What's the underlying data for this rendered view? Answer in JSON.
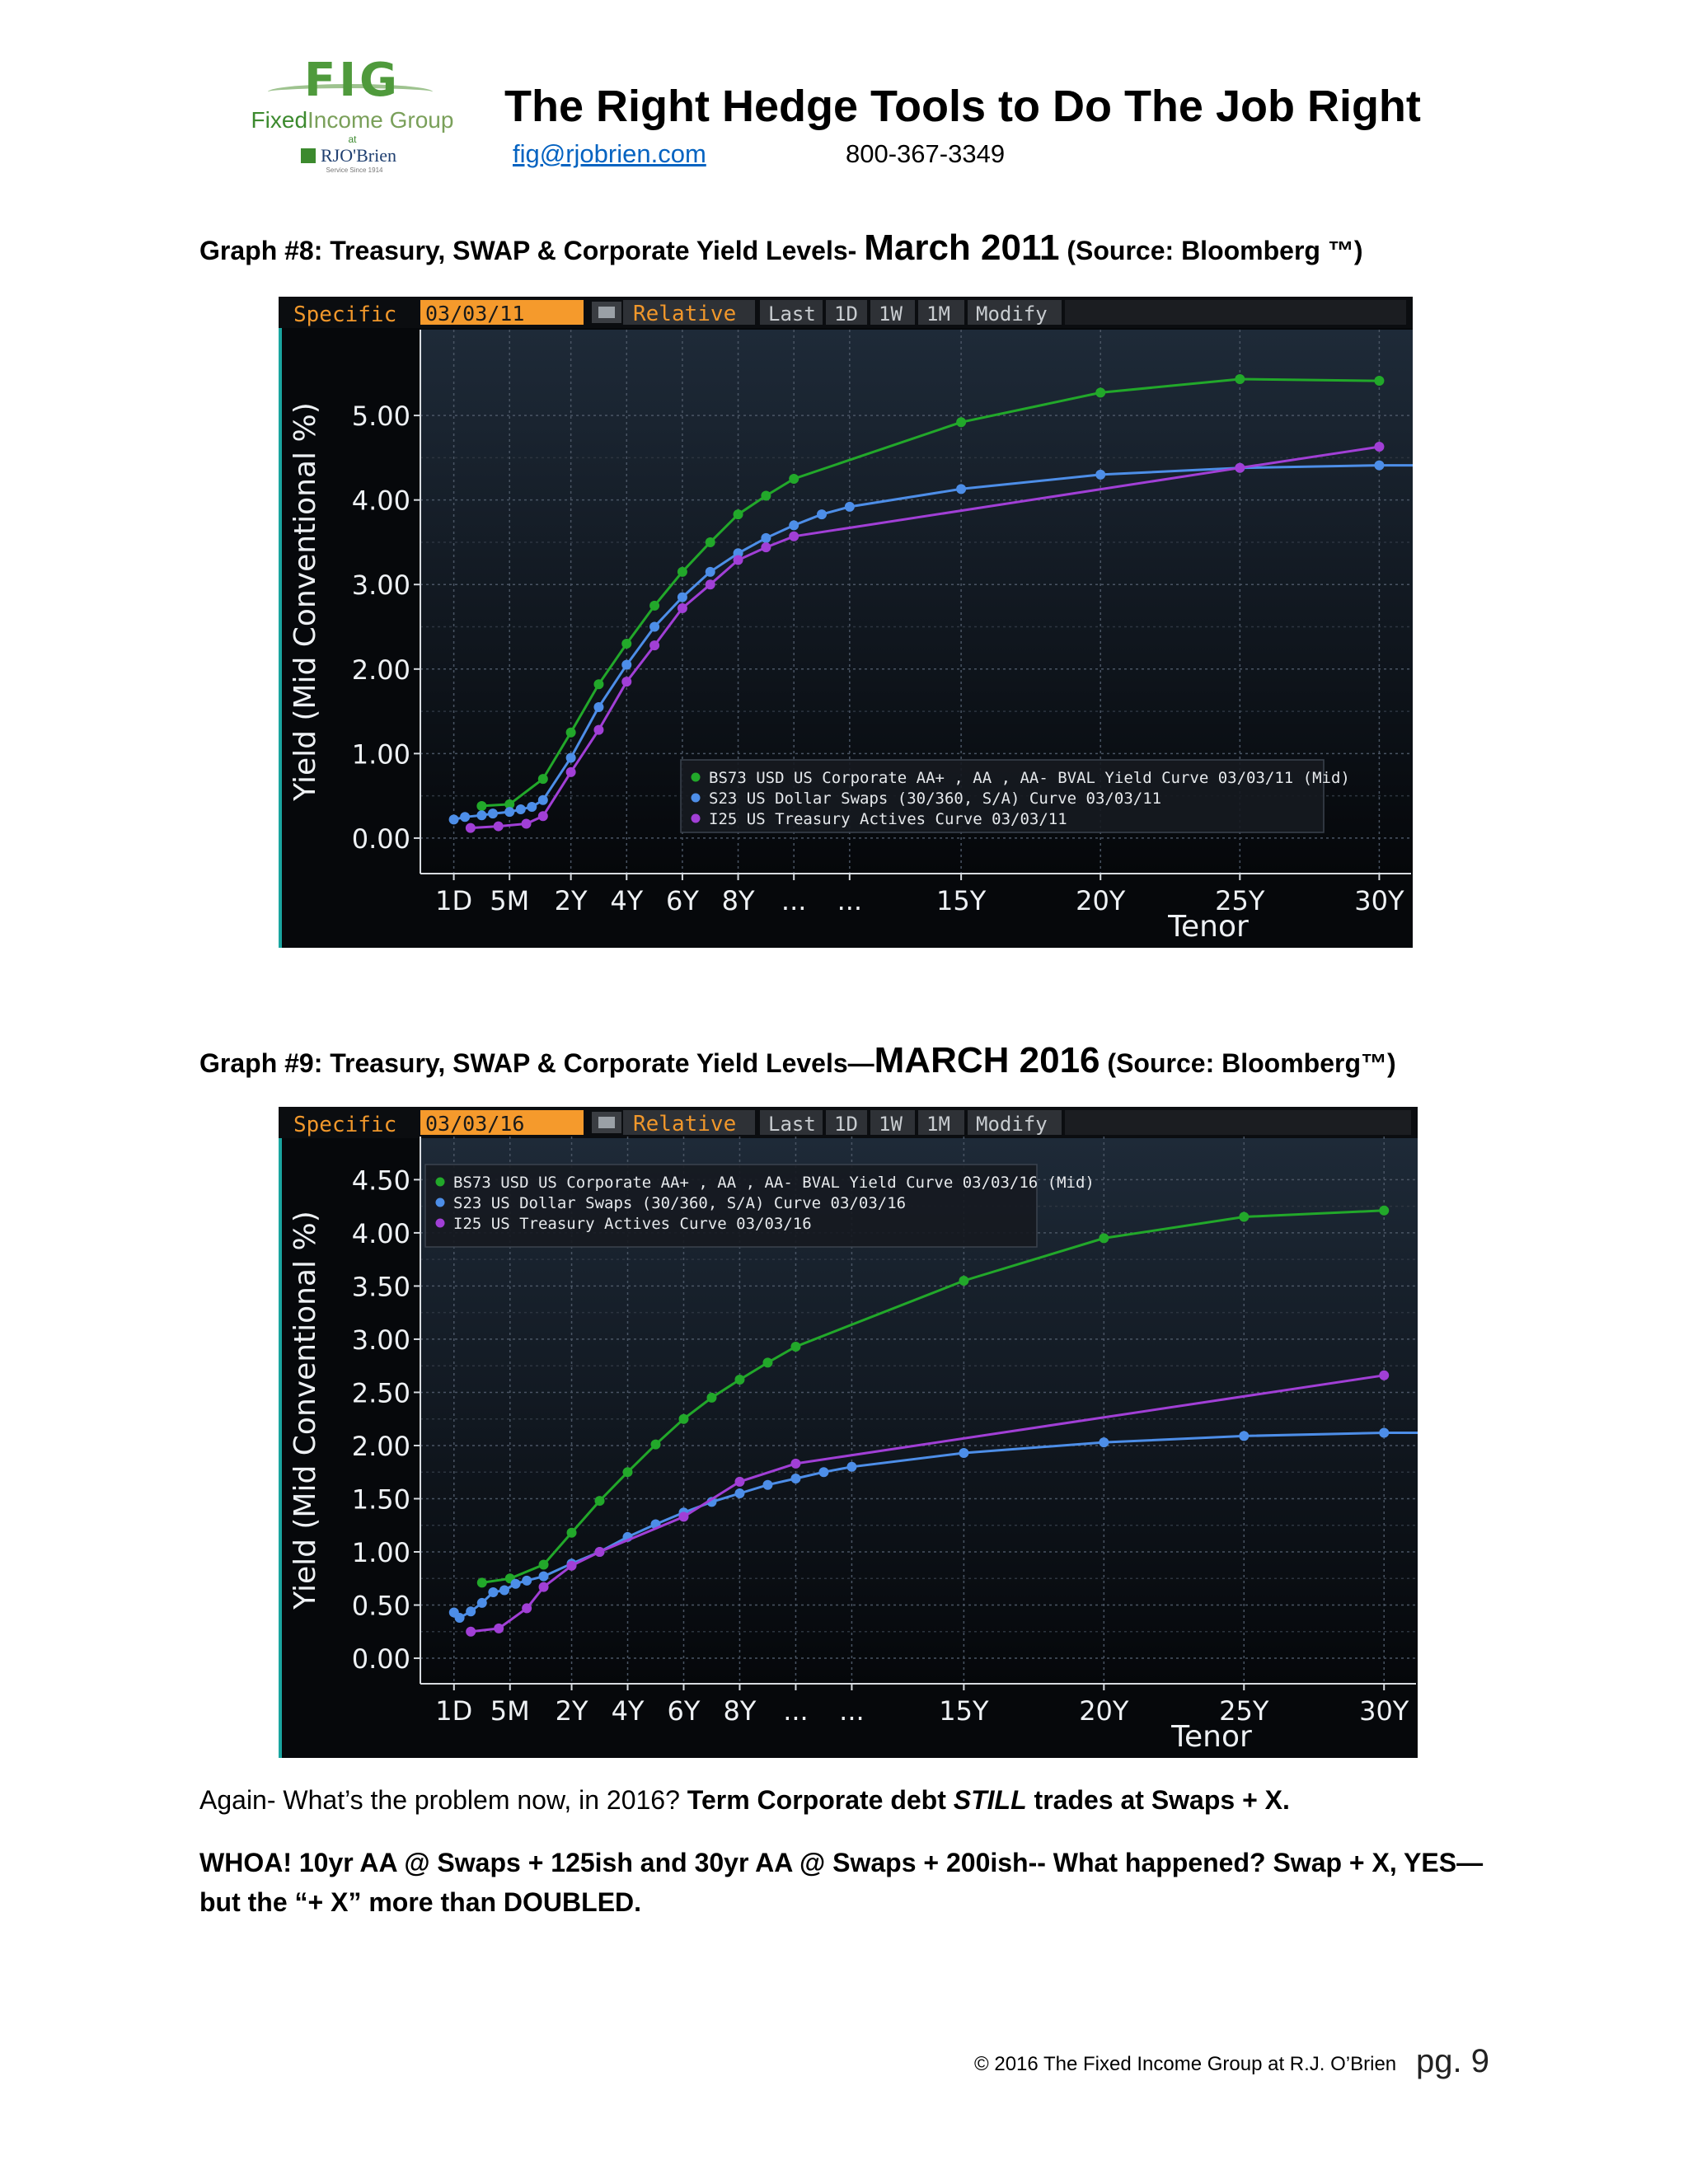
{
  "header": {
    "logo": {
      "abbr": "FIG",
      "name_part1": "Fixed",
      "name_part2": "Income Group",
      "at": "at",
      "rj": "RJO'Brien",
      "tag": "Service Since 1914"
    },
    "title": "The Right Hedge Tools to Do The Job Right",
    "email": "fig@rjobrien.com",
    "phone": "800-367-3349"
  },
  "graph8": {
    "caption_prefix": "Graph #8: Treasury, SWAP & Corporate Yield Levels- ",
    "caption_big": "March 2011",
    "caption_suffix": " (Source: Bloomberg ™)"
  },
  "graph9": {
    "caption_prefix": "Graph #9: Treasury, SWAP & Corporate Yield Levels—",
    "caption_big": "MARCH 2016",
    "caption_suffix": " (Source: Bloomberg™)"
  },
  "chart_data": [
    {
      "type": "line",
      "toolbar": {
        "specific": "Specific",
        "date": "03/03/11",
        "relative": "Relative",
        "buttons": [
          "Last",
          "1D",
          "1W",
          "1M",
          "Modify"
        ]
      },
      "ylabel": "Yield (Mid Conventional %)",
      "xlabel": "Tenor",
      "ylim": [
        -0.42,
        5.82
      ],
      "yticks": [
        0,
        1,
        2,
        3,
        4,
        5
      ],
      "ytick_labels": [
        "0.00",
        "1.00",
        "2.00",
        "3.00",
        "4.00",
        "5.00"
      ],
      "xticks": [
        0.6,
        1.6,
        2.7,
        3.7,
        4.7,
        5.7,
        6.7,
        7.7,
        9.7,
        12.2,
        14.7,
        17.2
      ],
      "xtick_labels": [
        "1D",
        "5M",
        "2Y",
        "4Y",
        "6Y",
        "8Y",
        "...",
        "...",
        "15Y",
        "20Y",
        "25Y",
        "30Y"
      ],
      "xlim": [
        0,
        17.8
      ],
      "legend_position": "inside-bottom-right",
      "grid": true,
      "series": [
        {
          "name": "BS73 USD US Corporate AA+ , AA , AA- BVAL Yield Curve 03/03/11 (Mid)",
          "color": "#22a82a",
          "x": [
            1.1,
            1.6,
            2.2,
            2.7,
            3.2,
            3.7,
            4.2,
            4.7,
            5.2,
            5.7,
            6.2,
            6.7,
            9.7,
            12.2,
            14.7,
            17.2
          ],
          "y": [
            0.38,
            0.4,
            0.7,
            1.25,
            1.82,
            2.3,
            2.75,
            3.15,
            3.5,
            3.83,
            4.05,
            4.25,
            4.92,
            5.27,
            5.43,
            5.41
          ]
        },
        {
          "name": "S23 US Dollar Swaps (30/360, S/A) Curve 03/03/11",
          "color": "#4d8ee8",
          "x": [
            0.6,
            0.8,
            1.1,
            1.3,
            1.6,
            1.8,
            2.0,
            2.2,
            2.7,
            3.2,
            3.7,
            4.2,
            4.7,
            5.2,
            5.7,
            6.2,
            6.7,
            7.2,
            7.7,
            9.7,
            12.2,
            14.7,
            17.2,
            17.8
          ],
          "y": [
            0.22,
            0.25,
            0.27,
            0.29,
            0.31,
            0.34,
            0.37,
            0.45,
            0.95,
            1.55,
            2.05,
            2.5,
            2.85,
            3.15,
            3.37,
            3.55,
            3.7,
            3.83,
            3.92,
            4.13,
            4.3,
            4.38,
            4.41,
            4.41
          ]
        },
        {
          "name": "I25 US Treasury Actives Curve 03/03/11",
          "color": "#a13fd6",
          "x": [
            0.9,
            1.4,
            1.9,
            2.2,
            2.7,
            3.2,
            3.7,
            4.2,
            4.7,
            5.2,
            5.7,
            6.2,
            6.7,
            14.7,
            17.2
          ],
          "y": [
            0.12,
            0.14,
            0.17,
            0.26,
            0.78,
            1.28,
            1.85,
            2.28,
            2.72,
            3.0,
            3.29,
            3.44,
            3.57,
            4.38,
            4.63
          ]
        }
      ]
    },
    {
      "type": "line",
      "toolbar": {
        "specific": "Specific",
        "date": "03/03/16",
        "relative": "Relative",
        "buttons": [
          "Last",
          "1D",
          "1W",
          "1M",
          "Modify"
        ]
      },
      "ylabel": "Yield (Mid Conventional %)",
      "xlabel": "Tenor",
      "ylim": [
        -0.24,
        4.72
      ],
      "yticks": [
        0,
        0.5,
        1,
        1.5,
        2,
        2.5,
        3,
        3.5,
        4,
        4.5
      ],
      "ytick_labels": [
        "0.00",
        "0.50",
        "1.00",
        "1.50",
        "2.00",
        "2.50",
        "3.00",
        "3.50",
        "4.00",
        "4.50"
      ],
      "xticks": [
        0.6,
        1.6,
        2.7,
        3.7,
        4.7,
        5.7,
        6.7,
        7.7,
        9.7,
        12.2,
        14.7,
        17.2
      ],
      "xtick_labels": [
        "1D",
        "5M",
        "2Y",
        "4Y",
        "6Y",
        "8Y",
        "...",
        "...",
        "15Y",
        "20Y",
        "25Y",
        "30Y"
      ],
      "xlim": [
        0,
        17.8
      ],
      "legend_position": "inside-top-left",
      "grid": true,
      "series": [
        {
          "name": "BS73 USD US Corporate AA+ , AA , AA- BVAL Yield Curve 03/03/16 (Mid)",
          "color": "#22a82a",
          "x": [
            1.1,
            1.6,
            2.2,
            2.7,
            3.2,
            3.7,
            4.2,
            4.7,
            5.2,
            5.7,
            6.2,
            6.7,
            9.7,
            12.2,
            14.7,
            17.2
          ],
          "y": [
            0.71,
            0.75,
            0.88,
            1.18,
            1.48,
            1.75,
            2.01,
            2.25,
            2.45,
            2.62,
            2.78,
            2.93,
            3.55,
            3.95,
            4.15,
            4.21
          ]
        },
        {
          "name": "S23 US Dollar Swaps (30/360, S/A) Curve 03/03/16",
          "color": "#4d8ee8",
          "x": [
            0.6,
            0.7,
            0.9,
            1.1,
            1.3,
            1.5,
            1.7,
            1.9,
            2.2,
            2.7,
            3.2,
            3.7,
            4.2,
            4.7,
            5.2,
            5.7,
            6.2,
            6.7,
            7.2,
            7.7,
            9.7,
            12.2,
            14.7,
            17.2,
            17.8
          ],
          "y": [
            0.43,
            0.38,
            0.44,
            0.52,
            0.62,
            0.64,
            0.7,
            0.73,
            0.77,
            0.89,
            1.0,
            1.14,
            1.26,
            1.37,
            1.47,
            1.55,
            1.63,
            1.69,
            1.75,
            1.8,
            1.93,
            2.03,
            2.09,
            2.12,
            2.12
          ]
        },
        {
          "name": "I25 US Treasury Actives Curve 03/03/16",
          "color": "#a13fd6",
          "x": [
            0.9,
            1.4,
            1.9,
            2.2,
            2.7,
            3.2,
            4.7,
            5.7,
            6.7,
            17.2
          ],
          "y": [
            0.25,
            0.28,
            0.47,
            0.67,
            0.87,
            1.0,
            1.33,
            1.66,
            1.83,
            2.66
          ]
        }
      ]
    }
  ],
  "paragraph1": {
    "normal": "Again- What’s the problem now, in 2016? ",
    "bold_a": "Term Corporate debt ",
    "bold_italic": "STILL",
    "bold_b": " trades at Swaps + X."
  },
  "paragraph2": "WHOA!   10yr AA @ Swaps + 125ish and 30yr AA @ Swaps + 200ish-- What happened? Swap + X, YES— but the “+ X” more than DOUBLED.",
  "footer": "© 2016 The Fixed Income Group at R.J. O’Brien",
  "page_number": "pg. 9"
}
